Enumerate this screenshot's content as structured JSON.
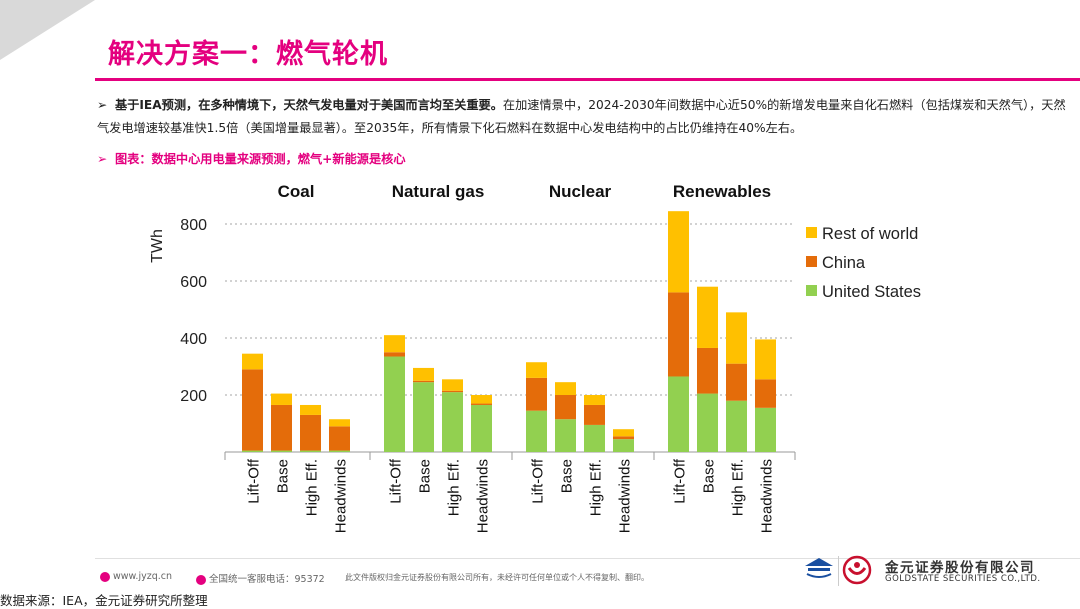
{
  "header": {
    "title": "解决方案一：燃气轮机"
  },
  "summary": {
    "bold": "基于IEA预测，在多种情境下，天然气发电量对于美国而言均至关重要。",
    "normal": "在加速情景中，2024-2030年间数据中心近50%的新增发电量来自化石燃料（包括煤炭和天然气），天然气发电增速较基准快1.5倍（美国增量最显著）。至2035年，所有情景下化石燃料在数据中心发电结构中的占比仍维持在40%左右。"
  },
  "chart_heading": "图表：数据中心用电量来源预测，燃气+新能源是核心",
  "chart_data": {
    "type": "bar",
    "stacked": true,
    "ylabel": "TWh",
    "yticks": [
      200,
      400,
      600,
      800
    ],
    "ylim": [
      0,
      850
    ],
    "grid": true,
    "legend_position": "top-right",
    "groups": [
      "Coal",
      "Natural gas",
      "Nuclear",
      "Renewables"
    ],
    "categories": [
      "Lift-Off",
      "Base",
      "High Eff.",
      "Headwinds"
    ],
    "series": [
      {
        "name": "United States",
        "color": "#92d050",
        "values": [
          [
            5,
            5,
            5,
            5
          ],
          [
            335,
            245,
            210,
            165
          ],
          [
            145,
            115,
            95,
            45
          ],
          [
            265,
            205,
            180,
            155
          ]
        ]
      },
      {
        "name": "China",
        "color": "#e46c0a",
        "values": [
          [
            285,
            160,
            125,
            85
          ],
          [
            15,
            5,
            5,
            5
          ],
          [
            115,
            85,
            70,
            10
          ],
          [
            295,
            160,
            130,
            100
          ]
        ]
      },
      {
        "name": "Rest of world",
        "color": "#ffc000",
        "values": [
          [
            55,
            40,
            35,
            25
          ],
          [
            60,
            45,
            40,
            30
          ],
          [
            55,
            45,
            35,
            25
          ],
          [
            285,
            215,
            180,
            140
          ]
        ]
      }
    ]
  },
  "footer": {
    "website": "www.jyzq.cn",
    "hotline": "全国统一客服电话：95372",
    "copyright": "此文件版权归金元证券股份有限公司所有，未经许可任何单位或个人不得复制、翻印。",
    "company_cn": "金元证券股份有限公司",
    "company_en": "GOLDSTATE SECURITIES CO.,LTD."
  },
  "source": "数据来源：IEA，金元证券研究所整理"
}
